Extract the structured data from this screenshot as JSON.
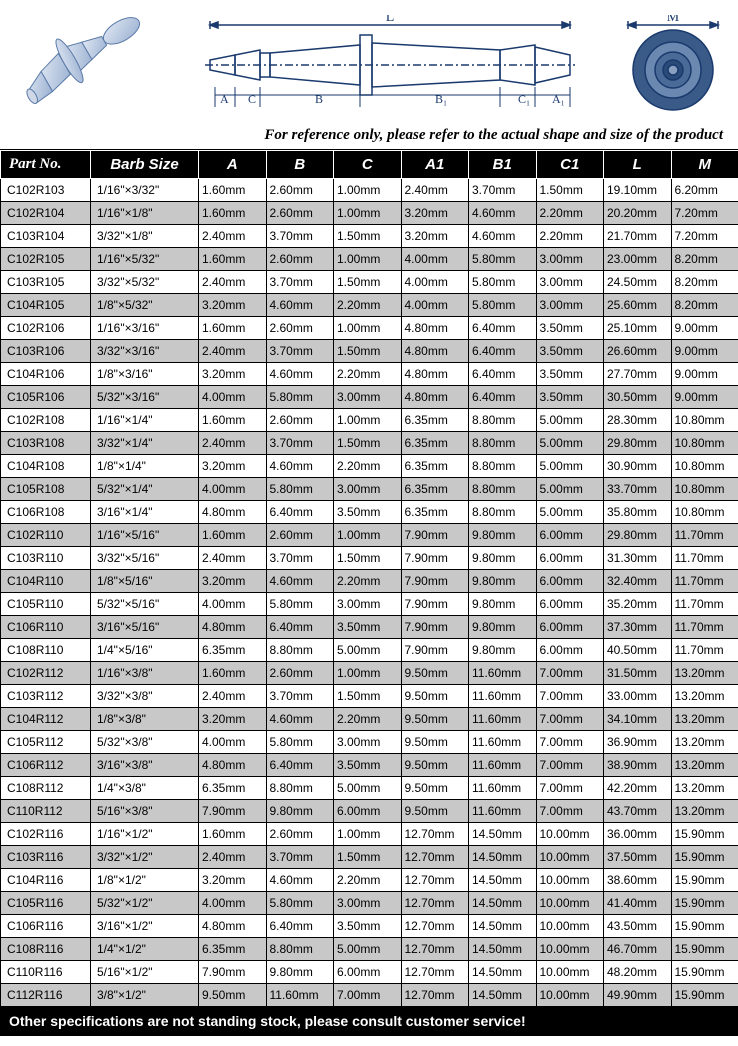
{
  "diagram": {
    "labels": {
      "L": "L",
      "M": "M",
      "A": "A",
      "C": "C",
      "B": "B",
      "B1": "B₁",
      "C1": "C₁",
      "A1": "A₁"
    },
    "reference_text": "For reference only, please refer to the actual shape and size of the product",
    "fill_color": "#b8c8e0",
    "line_color": "#1a3a6e"
  },
  "table": {
    "headers": [
      "Part No.",
      "Barb Size",
      "A",
      "B",
      "C",
      "A1",
      "B1",
      "C1",
      "L",
      "M"
    ],
    "header_bg": "#000000",
    "header_fg": "#ffffff",
    "row_odd_bg": "#ffffff",
    "row_even_bg": "#c8c8c8",
    "font_size_header": 15,
    "font_size_cell": 12,
    "rows": [
      [
        "C102R103",
        "1/16\"×3/32\"",
        "1.60mm",
        "2.60mm",
        "1.00mm",
        "2.40mm",
        "3.70mm",
        "1.50mm",
        "19.10mm",
        "6.20mm"
      ],
      [
        "C102R104",
        "1/16\"×1/8\"",
        "1.60mm",
        "2.60mm",
        "1.00mm",
        "3.20mm",
        "4.60mm",
        "2.20mm",
        "20.20mm",
        "7.20mm"
      ],
      [
        "C103R104",
        "3/32\"×1/8\"",
        "2.40mm",
        "3.70mm",
        "1.50mm",
        "3.20mm",
        "4.60mm",
        "2.20mm",
        "21.70mm",
        "7.20mm"
      ],
      [
        "C102R105",
        "1/16\"×5/32\"",
        "1.60mm",
        "2.60mm",
        "1.00mm",
        "4.00mm",
        "5.80mm",
        "3.00mm",
        "23.00mm",
        "8.20mm"
      ],
      [
        "C103R105",
        "3/32\"×5/32\"",
        "2.40mm",
        "3.70mm",
        "1.50mm",
        "4.00mm",
        "5.80mm",
        "3.00mm",
        "24.50mm",
        "8.20mm"
      ],
      [
        "C104R105",
        "1/8\"×5/32\"",
        "3.20mm",
        "4.60mm",
        "2.20mm",
        "4.00mm",
        "5.80mm",
        "3.00mm",
        "25.60mm",
        "8.20mm"
      ],
      [
        "C102R106",
        "1/16\"×3/16\"",
        "1.60mm",
        "2.60mm",
        "1.00mm",
        "4.80mm",
        "6.40mm",
        "3.50mm",
        "25.10mm",
        "9.00mm"
      ],
      [
        "C103R106",
        "3/32\"×3/16\"",
        "2.40mm",
        "3.70mm",
        "1.50mm",
        "4.80mm",
        "6.40mm",
        "3.50mm",
        "26.60mm",
        "9.00mm"
      ],
      [
        "C104R106",
        "1/8\"×3/16\"",
        "3.20mm",
        "4.60mm",
        "2.20mm",
        "4.80mm",
        "6.40mm",
        "3.50mm",
        "27.70mm",
        "9.00mm"
      ],
      [
        "C105R106",
        "5/32\"×3/16\"",
        "4.00mm",
        "5.80mm",
        "3.00mm",
        "4.80mm",
        "6.40mm",
        "3.50mm",
        "30.50mm",
        "9.00mm"
      ],
      [
        "C102R108",
        "1/16\"×1/4\"",
        "1.60mm",
        "2.60mm",
        "1.00mm",
        "6.35mm",
        "8.80mm",
        "5.00mm",
        "28.30mm",
        "10.80mm"
      ],
      [
        "C103R108",
        "3/32\"×1/4\"",
        "2.40mm",
        "3.70mm",
        "1.50mm",
        "6.35mm",
        "8.80mm",
        "5.00mm",
        "29.80mm",
        "10.80mm"
      ],
      [
        "C104R108",
        "1/8\"×1/4\"",
        "3.20mm",
        "4.60mm",
        "2.20mm",
        "6.35mm",
        "8.80mm",
        "5.00mm",
        "30.90mm",
        "10.80mm"
      ],
      [
        "C105R108",
        "5/32\"×1/4\"",
        "4.00mm",
        "5.80mm",
        "3.00mm",
        "6.35mm",
        "8.80mm",
        "5.00mm",
        "33.70mm",
        "10.80mm"
      ],
      [
        "C106R108",
        "3/16\"×1/4\"",
        "4.80mm",
        "6.40mm",
        "3.50mm",
        "6.35mm",
        "8.80mm",
        "5.00mm",
        "35.80mm",
        "10.80mm"
      ],
      [
        "C102R110",
        "1/16\"×5/16\"",
        "1.60mm",
        "2.60mm",
        "1.00mm",
        "7.90mm",
        "9.80mm",
        "6.00mm",
        "29.80mm",
        "11.70mm"
      ],
      [
        "C103R110",
        "3/32\"×5/16\"",
        "2.40mm",
        "3.70mm",
        "1.50mm",
        "7.90mm",
        "9.80mm",
        "6.00mm",
        "31.30mm",
        "11.70mm"
      ],
      [
        "C104R110",
        "1/8\"×5/16\"",
        "3.20mm",
        "4.60mm",
        "2.20mm",
        "7.90mm",
        "9.80mm",
        "6.00mm",
        "32.40mm",
        "11.70mm"
      ],
      [
        "C105R110",
        "5/32\"×5/16\"",
        "4.00mm",
        "5.80mm",
        "3.00mm",
        "7.90mm",
        "9.80mm",
        "6.00mm",
        "35.20mm",
        "11.70mm"
      ],
      [
        "C106R110",
        "3/16\"×5/16\"",
        "4.80mm",
        "6.40mm",
        "3.50mm",
        "7.90mm",
        "9.80mm",
        "6.00mm",
        "37.30mm",
        "11.70mm"
      ],
      [
        "C108R110",
        "1/4\"×5/16\"",
        "6.35mm",
        "8.80mm",
        "5.00mm",
        "7.90mm",
        "9.80mm",
        "6.00mm",
        "40.50mm",
        "11.70mm"
      ],
      [
        "C102R112",
        "1/16\"×3/8\"",
        "1.60mm",
        "2.60mm",
        "1.00mm",
        "9.50mm",
        "11.60mm",
        "7.00mm",
        "31.50mm",
        "13.20mm"
      ],
      [
        "C103R112",
        "3/32\"×3/8\"",
        "2.40mm",
        "3.70mm",
        "1.50mm",
        "9.50mm",
        "11.60mm",
        "7.00mm",
        "33.00mm",
        "13.20mm"
      ],
      [
        "C104R112",
        "1/8\"×3/8\"",
        "3.20mm",
        "4.60mm",
        "2.20mm",
        "9.50mm",
        "11.60mm",
        "7.00mm",
        "34.10mm",
        "13.20mm"
      ],
      [
        "C105R112",
        "5/32\"×3/8\"",
        "4.00mm",
        "5.80mm",
        "3.00mm",
        "9.50mm",
        "11.60mm",
        "7.00mm",
        "36.90mm",
        "13.20mm"
      ],
      [
        "C106R112",
        "3/16\"×3/8\"",
        "4.80mm",
        "6.40mm",
        "3.50mm",
        "9.50mm",
        "11.60mm",
        "7.00mm",
        "38.90mm",
        "13.20mm"
      ],
      [
        "C108R112",
        "1/4\"×3/8\"",
        "6.35mm",
        "8.80mm",
        "5.00mm",
        "9.50mm",
        "11.60mm",
        "7.00mm",
        "42.20mm",
        "13.20mm"
      ],
      [
        "C110R112",
        "5/16\"×3/8\"",
        "7.90mm",
        "9.80mm",
        "6.00mm",
        "9.50mm",
        "11.60mm",
        "7.00mm",
        "43.70mm",
        "13.20mm"
      ],
      [
        "C102R116",
        "1/16\"×1/2\"",
        "1.60mm",
        "2.60mm",
        "1.00mm",
        "12.70mm",
        "14.50mm",
        "10.00mm",
        "36.00mm",
        "15.90mm"
      ],
      [
        "C103R116",
        "3/32\"×1/2\"",
        "2.40mm",
        "3.70mm",
        "1.50mm",
        "12.70mm",
        "14.50mm",
        "10.00mm",
        "37.50mm",
        "15.90mm"
      ],
      [
        "C104R116",
        "1/8\"×1/2\"",
        "3.20mm",
        "4.60mm",
        "2.20mm",
        "12.70mm",
        "14.50mm",
        "10.00mm",
        "38.60mm",
        "15.90mm"
      ],
      [
        "C105R116",
        "5/32\"×1/2\"",
        "4.00mm",
        "5.80mm",
        "3.00mm",
        "12.70mm",
        "14.50mm",
        "10.00mm",
        "41.40mm",
        "15.90mm"
      ],
      [
        "C106R116",
        "3/16\"×1/2\"",
        "4.80mm",
        "6.40mm",
        "3.50mm",
        "12.70mm",
        "14.50mm",
        "10.00mm",
        "43.50mm",
        "15.90mm"
      ],
      [
        "C108R116",
        "1/4\"×1/2\"",
        "6.35mm",
        "8.80mm",
        "5.00mm",
        "12.70mm",
        "14.50mm",
        "10.00mm",
        "46.70mm",
        "15.90mm"
      ],
      [
        "C110R116",
        "5/16\"×1/2\"",
        "7.90mm",
        "9.80mm",
        "6.00mm",
        "12.70mm",
        "14.50mm",
        "10.00mm",
        "48.20mm",
        "15.90mm"
      ],
      [
        "C112R116",
        "3/8\"×1/2\"",
        "9.50mm",
        "11.60mm",
        "7.00mm",
        "12.70mm",
        "14.50mm",
        "10.00mm",
        "49.90mm",
        "15.90mm"
      ]
    ],
    "footer": "Other specifications are not standing stock, please consult customer service!"
  }
}
